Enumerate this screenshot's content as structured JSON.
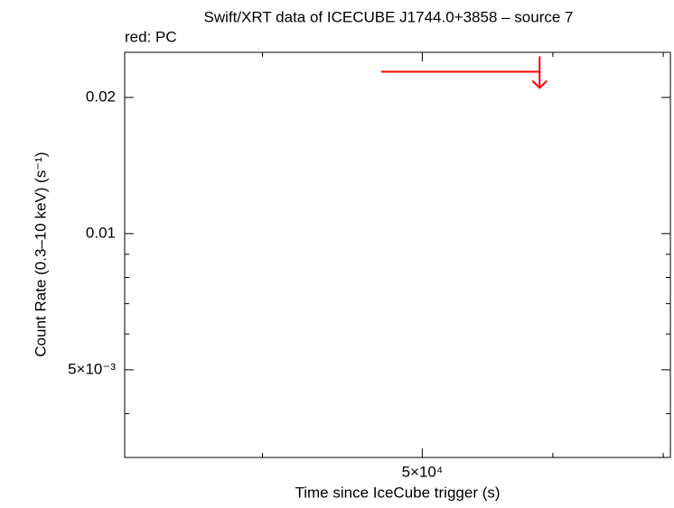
{
  "chart_data": {
    "type": "upper-limit",
    "title": "Swift/XRT data of ICECUBE J1744.0+3858 – source 7",
    "subtitle": "red: PC",
    "x_label": "Time since IceCube trigger (s)",
    "y_label": "Count Rate (0.3–10 keV) (s⁻¹)",
    "xlog": true,
    "ylog": true,
    "xlim": [
      33000,
      70700
    ],
    "ylim": [
      0.0032,
      0.02516
    ],
    "xticks": [
      {
        "value": 50000,
        "label": "5×10⁴"
      }
    ],
    "xminorticks": [
      40000,
      60000,
      70000
    ],
    "yticks": [
      0.02,
      0.01,
      {
        "value": 0.005,
        "label": "5×10⁻³"
      }
    ],
    "yminorticks": [
      0.009,
      0.008,
      0.007,
      0.006,
      0.004
    ],
    "series": [
      {
        "color": "#ff0000",
        "x_low": [
          47200
        ],
        "x_high": [
          58900
        ],
        "values": [
          0.0228
        ]
      }
    ]
  }
}
